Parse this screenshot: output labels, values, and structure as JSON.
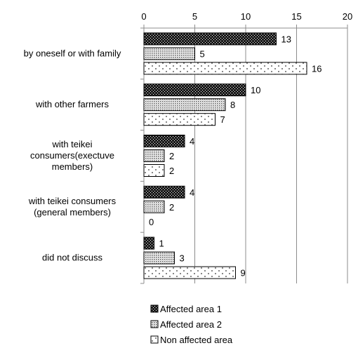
{
  "chart_data": {
    "type": "bar",
    "orientation": "horizontal",
    "categories": [
      [
        "by oneself or with family"
      ],
      [
        "with other farmers"
      ],
      [
        "with teikei",
        "consumers(exectuve",
        "members)"
      ],
      [
        "with teikei consumers",
        "(general members)"
      ],
      [
        "did not discuss"
      ]
    ],
    "series": [
      {
        "name": "Affected area 1",
        "values": [
          13,
          10,
          4,
          4,
          1
        ],
        "pattern": "dense-dots-dark"
      },
      {
        "name": "Affected area 2",
        "values": [
          5,
          8,
          2,
          2,
          3
        ],
        "pattern": "fine-dots-gray"
      },
      {
        "name": "Non affected area",
        "values": [
          16,
          7,
          2,
          0,
          9
        ],
        "pattern": "sparse-dots-light"
      }
    ],
    "xlim": [
      0,
      20
    ],
    "xticks": [
      0,
      5,
      10,
      15,
      20
    ],
    "x_axis_position": "top",
    "grid": true,
    "data_labels": true,
    "legend": {
      "placement": "bottom"
    }
  }
}
